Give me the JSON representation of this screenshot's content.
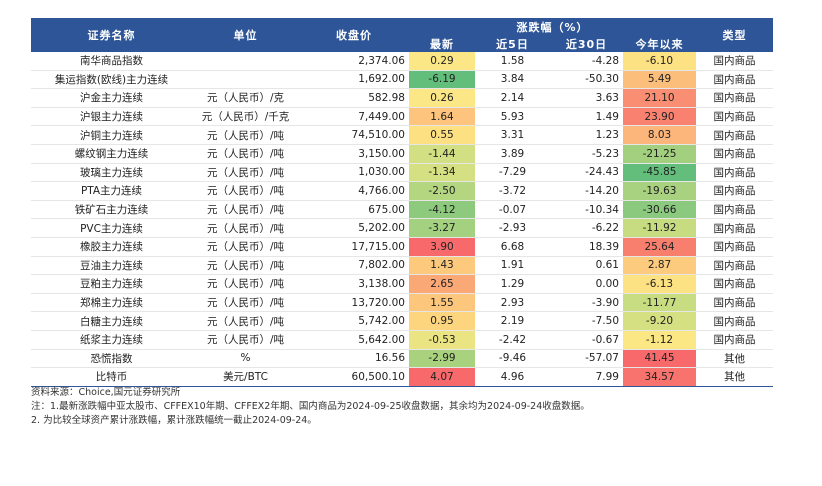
{
  "header": {
    "name": "证券名称",
    "unit": "单位",
    "close": "收盘价",
    "change_group": "涨跌幅（%）",
    "latest": "最新",
    "d5": "近5日",
    "d30": "近30日",
    "ytd": "今年以来",
    "type": "类型"
  },
  "rows": [
    {
      "name": "南华商品指数",
      "unit": "",
      "close": "2,374.06",
      "latest": "0.29",
      "d5": "1.58",
      "d30": "-4.28",
      "ytd": "-6.10",
      "type": "国内商品",
      "latest_color": "#fbe785",
      "ytd_color": "#fde283"
    },
    {
      "name": "集运指数(欧线)主力连续",
      "unit": "",
      "close": "1,692.00",
      "latest": "-6.19",
      "d5": "3.84",
      "d30": "-50.30",
      "ytd": "5.49",
      "type": "国内商品",
      "latest_color": "#63be7b",
      "ytd_color": "#fcbf7b"
    },
    {
      "name": "沪金主力连续",
      "unit": "元（人民币）/克",
      "close": "582.98",
      "latest": "0.26",
      "d5": "2.14",
      "d30": "3.63",
      "ytd": "21.10",
      "type": "国内商品",
      "latest_color": "#fbe785",
      "ytd_color": "#f98e72"
    },
    {
      "name": "沪银主力连续",
      "unit": "元（人民币）/千克",
      "close": "7,449.00",
      "latest": "1.64",
      "d5": "5.93",
      "d30": "1.49",
      "ytd": "23.90",
      "type": "国内商品",
      "latest_color": "#fcc47c",
      "ytd_color": "#f8826f"
    },
    {
      "name": "沪铜主力连续",
      "unit": "元（人民币）/吨",
      "close": "74,510.00",
      "latest": "0.55",
      "d5": "3.31",
      "d30": "1.23",
      "ytd": "8.03",
      "type": "国内商品",
      "latest_color": "#fde082",
      "ytd_color": "#fcb57a"
    },
    {
      "name": "螺纹钢主力连续",
      "unit": "元（人民币）/吨",
      "close": "3,150.00",
      "latest": "-1.44",
      "d5": "3.89",
      "d30": "-5.23",
      "ytd": "-21.25",
      "type": "国内商品",
      "latest_color": "#d2df82",
      "ytd_color": "#a2d07f"
    },
    {
      "name": "玻璃主力连续",
      "unit": "元（人民币）/吨",
      "close": "1,030.00",
      "latest": "-1.34",
      "d5": "-7.29",
      "d30": "-24.43",
      "ytd": "-45.85",
      "type": "国内商品",
      "latest_color": "#d5e082",
      "ytd_color": "#63be7b"
    },
    {
      "name": "PTA主力连续",
      "unit": "元（人民币）/吨",
      "close": "4,766.00",
      "latest": "-2.50",
      "d5": "-3.72",
      "d30": "-14.20",
      "ytd": "-19.63",
      "type": "国内商品",
      "latest_color": "#b4d680",
      "ytd_color": "#a8d27f"
    },
    {
      "name": "铁矿石主力连续",
      "unit": "元（人民币）/吨",
      "close": "675.00",
      "latest": "-4.12",
      "d5": "-0.07",
      "d30": "-10.34",
      "ytd": "-30.66",
      "type": "国内商品",
      "latest_color": "#8dca7e",
      "ytd_color": "#8ac97e"
    },
    {
      "name": "PVC主力连续",
      "unit": "元（人民币）/吨",
      "close": "5,202.00",
      "latest": "-3.27",
      "d5": "-2.93",
      "d30": "-6.22",
      "ytd": "-11.92",
      "type": "国内商品",
      "latest_color": "#a3d17f",
      "ytd_color": "#c7dc81"
    },
    {
      "name": "橡胶主力连续",
      "unit": "元（人民币）/吨",
      "close": "17,715.00",
      "latest": "3.90",
      "d5": "6.68",
      "d30": "18.39",
      "ytd": "25.64",
      "type": "国内商品",
      "latest_color": "#f8696b",
      "ytd_color": "#f87f6e"
    },
    {
      "name": "豆油主力连续",
      "unit": "元（人民币）/吨",
      "close": "7,802.00",
      "latest": "1.43",
      "d5": "1.91",
      "d30": "0.61",
      "ytd": "2.87",
      "type": "国内商品",
      "latest_color": "#fcc97d",
      "ytd_color": "#fdcb7d"
    },
    {
      "name": "豆粕主力连续",
      "unit": "元（人民币）/吨",
      "close": "3,138.00",
      "latest": "2.65",
      "d5": "1.29",
      "d30": "0.00",
      "ytd": "-6.13",
      "type": "国内商品",
      "latest_color": "#fba877",
      "ytd_color": "#fde283"
    },
    {
      "name": "郑棉主力连续",
      "unit": "元（人民币）/吨",
      "close": "13,720.00",
      "latest": "1.55",
      "d5": "2.93",
      "d30": "-3.90",
      "ytd": "-11.77",
      "type": "国内商品",
      "latest_color": "#fcc67c",
      "ytd_color": "#c8dd81"
    },
    {
      "name": "白糖主力连续",
      "unit": "元（人民币）/吨",
      "close": "5,742.00",
      "latest": "0.95",
      "d5": "2.19",
      "d30": "-7.50",
      "ytd": "-9.20",
      "type": "国内商品",
      "latest_color": "#fdd57f",
      "ytd_color": "#d5e082"
    },
    {
      "name": "纸浆主力连续",
      "unit": "元（人民币）/吨",
      "close": "5,642.00",
      "latest": "-0.53",
      "d5": "-2.42",
      "d30": "-0.67",
      "ytd": "-1.12",
      "type": "国内商品",
      "latest_color": "#ebe483",
      "ytd_color": "#fbe885"
    },
    {
      "name": "恐慌指数",
      "unit": "%",
      "close": "16.56",
      "latest": "-2.99",
      "d5": "-9.46",
      "d30": "-57.07",
      "ytd": "41.45",
      "type": "其他",
      "latest_color": "#a9d27f",
      "ytd_color": "#f8696b"
    },
    {
      "name": "比特币",
      "unit": "美元/BTC",
      "close": "60,500.10",
      "latest": "4.07",
      "d5": "4.96",
      "d30": "7.99",
      "ytd": "34.57",
      "type": "其他",
      "latest_color": "#f8696b",
      "ytd_color": "#f8736d"
    }
  ],
  "notes": {
    "source": "资料来源：Choice,国元证券研究所",
    "note1": "注：1.最新涨跌幅中亚太股市、CFFEX10年期、CFFEX2年期、国内商品为2024-09-25收盘数据，其余均为2024-09-24收盘数据。",
    "note2": "2. 为比较全球资产累计涨跌幅，累计涨跌幅统一截止2024-09-24。"
  }
}
